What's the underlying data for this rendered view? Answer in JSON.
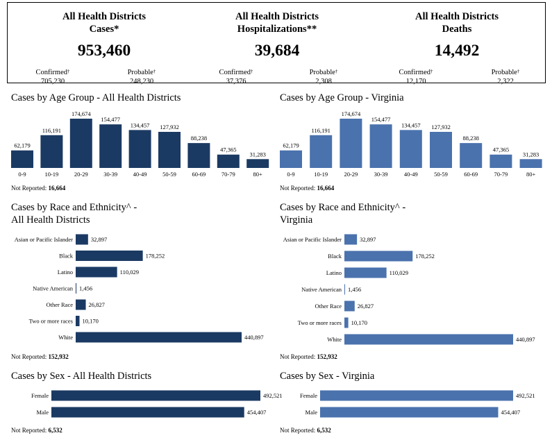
{
  "summary": {
    "cases": {
      "title_line1": "All Health Districts",
      "title_line2": "Cases*",
      "total": "953,460",
      "confirmed_label": "Confirmed",
      "confirmed": "705,230",
      "probable_label": "Probable",
      "probable": "248,230"
    },
    "hospitalizations": {
      "title_line1": "All Health Districts",
      "title_line2": "Hospitalizations**",
      "total": "39,684",
      "confirmed_label": "Confirmed",
      "confirmed": "37,376",
      "probable_label": "Probable",
      "probable": "2,308"
    },
    "deaths": {
      "title_line1": "All Health Districts",
      "title_line2": "Deaths",
      "total": "14,492",
      "confirmed_label": "Confirmed",
      "confirmed": "12,170",
      "probable_label": "Probable",
      "probable": "2,322"
    },
    "dagger": "†"
  },
  "not_reported_label": "Not Reported:",
  "colors": {
    "districts": "#1b3a63",
    "virginia": "#4a72ad"
  },
  "chart_data": [
    {
      "id": "age-districts",
      "type": "bar",
      "title": "Cases by Age Group - All Health Districts",
      "categories": [
        "0-9",
        "10-19",
        "20-29",
        "30-39",
        "40-49",
        "50-59",
        "60-69",
        "70-79",
        "80+"
      ],
      "values": [
        62179,
        116191,
        174674,
        154477,
        134457,
        127932,
        88238,
        47365,
        31283
      ],
      "value_labels": [
        "62,179",
        "116,191",
        "174,674",
        "154,477",
        "134,457",
        "127,932",
        "88,238",
        "47,365",
        "31,283"
      ],
      "not_reported": "16,664"
    },
    {
      "id": "age-virginia",
      "type": "bar",
      "title": "Cases by Age Group - Virginia",
      "categories": [
        "0-9",
        "10-19",
        "20-29",
        "30-39",
        "40-49",
        "50-59",
        "60-69",
        "70-79",
        "80+"
      ],
      "values": [
        62179,
        116191,
        174674,
        154477,
        134457,
        127932,
        88238,
        47365,
        31283
      ],
      "value_labels": [
        "62,179",
        "116,191",
        "174,674",
        "154,477",
        "134,457",
        "127,932",
        "88,238",
        "47,365",
        "31,283"
      ],
      "not_reported": "16,664"
    },
    {
      "id": "race-districts",
      "type": "bar",
      "orientation": "horizontal",
      "title_line1": "Cases by Race and Ethnicity^ -",
      "title_line2": "All Health Districts",
      "categories": [
        "Asian or Pacific Islander",
        "Black",
        "Latino",
        "Native American",
        "Other Race",
        "Two or more races",
        "White"
      ],
      "values": [
        32897,
        178252,
        110029,
        1456,
        26827,
        10170,
        440897
      ],
      "value_labels": [
        "32,897",
        "178,252",
        "110,029",
        "1,456",
        "26,827",
        "10,170",
        "440,897"
      ],
      "not_reported": "152,932"
    },
    {
      "id": "race-virginia",
      "type": "bar",
      "orientation": "horizontal",
      "title_line1": "Cases by Race and Ethnicity^ -",
      "title_line2": "Virginia",
      "categories": [
        "Asian or Pacific Islander",
        "Black",
        "Latino",
        "Native American",
        "Other Race",
        "Two or more races",
        "White"
      ],
      "values": [
        32897,
        178252,
        110029,
        1456,
        26827,
        10170,
        440897
      ],
      "value_labels": [
        "32,897",
        "178,252",
        "110,029",
        "1,456",
        "26,827",
        "10,170",
        "440,897"
      ],
      "not_reported": "152,932"
    },
    {
      "id": "sex-districts",
      "type": "bar",
      "orientation": "horizontal",
      "title": "Cases by Sex - All Health Districts",
      "categories": [
        "Female",
        "Male"
      ],
      "values": [
        492521,
        454407
      ],
      "value_labels": [
        "492,521",
        "454,407"
      ],
      "not_reported": "6,532"
    },
    {
      "id": "sex-virginia",
      "type": "bar",
      "orientation": "horizontal",
      "title": "Cases by Sex - Virginia",
      "categories": [
        "Female",
        "Male"
      ],
      "values": [
        492521,
        454407
      ],
      "value_labels": [
        "492,521",
        "454,407"
      ],
      "not_reported": "6,532"
    }
  ]
}
